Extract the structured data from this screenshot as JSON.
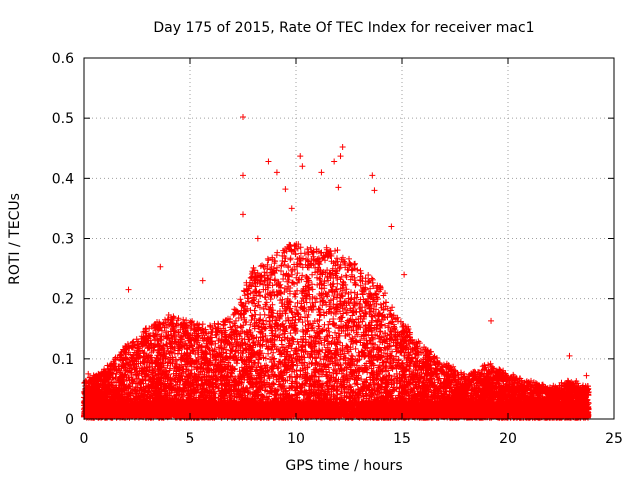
{
  "chart_data": {
    "type": "scatter",
    "title": "Day 175 of 2015, Rate Of TEC Index for receiver mac1",
    "xlabel": "GPS time / hours",
    "ylabel": "ROTI / TECUs",
    "xlim": [
      0,
      25
    ],
    "ylim": [
      0,
      0.6
    ],
    "xticks": [
      "0",
      "5",
      "10",
      "15",
      "20",
      "25"
    ],
    "yticks": [
      "0",
      "0.1",
      "0.2",
      "0.3",
      "0.4",
      "0.5",
      "0.6"
    ],
    "grid": true,
    "marker": "+",
    "colors": {
      "series": "#ff0000",
      "axis": "#000000",
      "grid": "#a0a0a0"
    },
    "envelope": {
      "description_hours": [
        0,
        1,
        2,
        3,
        4,
        5,
        6,
        7,
        8,
        9,
        10,
        11,
        12,
        13,
        14,
        15,
        16,
        17,
        18,
        19,
        20,
        21,
        22,
        23,
        23.8
      ],
      "typical_max": [
        0.06,
        0.08,
        0.12,
        0.15,
        0.17,
        0.16,
        0.15,
        0.17,
        0.25,
        0.27,
        0.3,
        0.28,
        0.28,
        0.25,
        0.22,
        0.16,
        0.12,
        0.09,
        0.07,
        0.09,
        0.07,
        0.06,
        0.05,
        0.06,
        0.05
      ]
    },
    "peak_points": [
      {
        "x": 0.2,
        "y": 0.075
      },
      {
        "x": 2.1,
        "y": 0.215
      },
      {
        "x": 3.6,
        "y": 0.253
      },
      {
        "x": 5.6,
        "y": 0.23
      },
      {
        "x": 7.5,
        "y": 0.502
      },
      {
        "x": 7.5,
        "y": 0.405
      },
      {
        "x": 7.5,
        "y": 0.34
      },
      {
        "x": 8.2,
        "y": 0.3
      },
      {
        "x": 8.7,
        "y": 0.428
      },
      {
        "x": 9.1,
        "y": 0.41
      },
      {
        "x": 9.5,
        "y": 0.382
      },
      {
        "x": 9.8,
        "y": 0.35
      },
      {
        "x": 10.2,
        "y": 0.437
      },
      {
        "x": 10.3,
        "y": 0.42
      },
      {
        "x": 11.2,
        "y": 0.41
      },
      {
        "x": 11.8,
        "y": 0.428
      },
      {
        "x": 12.2,
        "y": 0.452
      },
      {
        "x": 12.1,
        "y": 0.437
      },
      {
        "x": 12.0,
        "y": 0.385
      },
      {
        "x": 13.6,
        "y": 0.405
      },
      {
        "x": 13.7,
        "y": 0.38
      },
      {
        "x": 14.5,
        "y": 0.32
      },
      {
        "x": 15.1,
        "y": 0.24
      },
      {
        "x": 19.2,
        "y": 0.163
      },
      {
        "x": 22.9,
        "y": 0.105
      },
      {
        "x": 23.7,
        "y": 0.072
      }
    ]
  }
}
